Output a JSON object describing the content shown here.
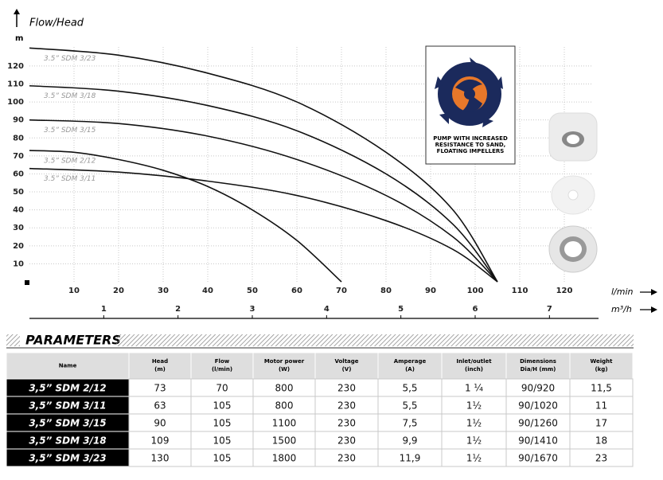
{
  "chart_data": {
    "type": "line",
    "title": "Flow/Head",
    "y_label": "m",
    "x_label": "l/min",
    "x2_label": "m³/h",
    "xlim": [
      0,
      130
    ],
    "ylim": [
      0,
      135
    ],
    "x2lim": [
      0,
      7.8
    ],
    "xticks": [
      10,
      20,
      30,
      40,
      50,
      60,
      70,
      80,
      90,
      100,
      110,
      120
    ],
    "yticks": [
      10,
      20,
      30,
      40,
      50,
      60,
      70,
      80,
      90,
      100,
      110,
      120
    ],
    "x2ticks": [
      1,
      2,
      3,
      4,
      5,
      6,
      7
    ],
    "grid": true,
    "series": [
      {
        "name": "3.5” SDM 3/23",
        "color": "#111111",
        "x": [
          0,
          20,
          40,
          60,
          80,
          95,
          105
        ],
        "values": [
          130,
          126,
          116,
          100,
          72,
          40,
          0
        ]
      },
      {
        "name": "3.5” SDM 3/18",
        "color": "#111111",
        "x": [
          0,
          20,
          40,
          60,
          80,
          95,
          105
        ],
        "values": [
          109,
          106,
          98,
          84,
          60,
          32,
          0
        ]
      },
      {
        "name": "3.5” SDM 3/15",
        "color": "#111111",
        "x": [
          0,
          20,
          40,
          60,
          80,
          95,
          105
        ],
        "values": [
          90,
          88,
          81,
          68,
          48,
          25,
          0
        ]
      },
      {
        "name": "3.5” SDM 2/12",
        "color": "#111111",
        "x": [
          0,
          10,
          20,
          30,
          40,
          50,
          60,
          70
        ],
        "values": [
          73,
          72,
          68,
          62,
          53,
          40,
          23,
          0
        ]
      },
      {
        "name": "3.5” SDM 3/11",
        "color": "#111111",
        "x": [
          0,
          20,
          40,
          60,
          80,
          95,
          105
        ],
        "values": [
          63,
          61,
          56,
          48,
          34,
          18,
          0
        ]
      }
    ]
  },
  "feature_box": {
    "text": "PUMP WITH INCREASED RESISTANCE TO SAND, FLOATING IMPELLERS"
  },
  "table": {
    "title": "PARAMETERS",
    "header": [
      {
        "name": "Name"
      },
      {
        "name": "Head",
        "unit": "(m)"
      },
      {
        "name": "Flow",
        "unit": "(l/min)"
      },
      {
        "name": "Motor power",
        "unit": "(W)"
      },
      {
        "name": "Voltage",
        "unit": "(V)"
      },
      {
        "name": "Amperage",
        "unit": "(A)"
      },
      {
        "name": "Inlet/outlet",
        "unit": "(inch)"
      },
      {
        "name": "Dimensions",
        "unit": "Dia/H (mm)"
      },
      {
        "name": "Weight",
        "unit": "(kg)"
      }
    ],
    "rows": [
      [
        "3,5” SDM 2/12",
        "73",
        "70",
        "800",
        "230",
        "5,5",
        "1 ¼",
        "90/920",
        "11,5"
      ],
      [
        "3,5” SDM 3/11",
        "63",
        "105",
        "800",
        "230",
        "5,5",
        "1½",
        "90/1020",
        "11"
      ],
      [
        "3,5” SDM 3/15",
        "90",
        "105",
        "1100",
        "230",
        "7,5",
        "1½",
        "90/1260",
        "17"
      ],
      [
        "3,5” SDM 3/18",
        "109",
        "105",
        "1500",
        "230",
        "9,9",
        "1½",
        "90/1410",
        "18"
      ],
      [
        "3,5” SDM 3/23",
        "130",
        "105",
        "1800",
        "230",
        "11,9",
        "1½",
        "90/1670",
        "23"
      ]
    ]
  }
}
